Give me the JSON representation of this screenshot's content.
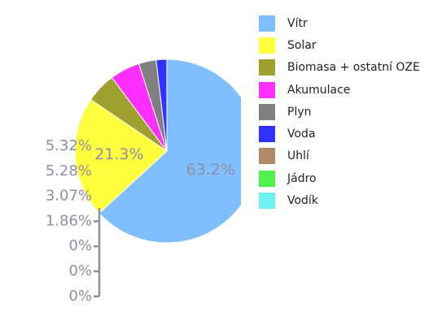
{
  "chart_data": {
    "type": "pie",
    "title": "",
    "slices": [
      {
        "label": "Vítr",
        "value": 63.2,
        "value_label": "63.2%",
        "color": "#80bfff"
      },
      {
        "label": "Solar",
        "value": 21.3,
        "value_label": "21.3%",
        "color": "#ffff40"
      },
      {
        "label": "Biomasa + ostatní OZE",
        "value": 5.32,
        "value_label": "5.32%",
        "color": "#a0a030"
      },
      {
        "label": "Akumulace",
        "value": 5.28,
        "value_label": "5.28%",
        "color": "#ff30ff"
      },
      {
        "label": "Plyn",
        "value": 3.07,
        "value_label": "3.07%",
        "color": "#808080"
      },
      {
        "label": "Voda",
        "value": 1.86,
        "value_label": "1.86%",
        "color": "#3030ff"
      },
      {
        "label": "Uhlí",
        "value": 0,
        "value_label": "0%",
        "color": "#b08a68"
      },
      {
        "label": "Jádro",
        "value": 0,
        "value_label": "0%",
        "color": "#50f050"
      },
      {
        "label": "Vodík",
        "value": 0,
        "value_label": "0%",
        "color": "#70f0f0"
      }
    ],
    "legend_position": "right"
  }
}
